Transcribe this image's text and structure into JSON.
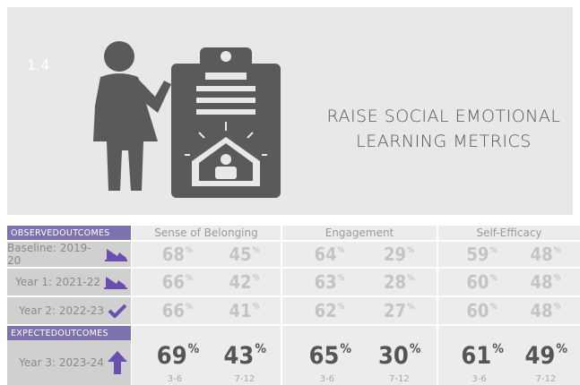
{
  "badge": "1.4",
  "title": "RAISE SOCIAL EMOTIONAL LEARNING METRICS",
  "table": {
    "observed_label": "OBSERVEDOUTCOMES",
    "expected_label": "EXPECTEDOUTCOMES",
    "columns": [
      "Sense of Belonging",
      "Engagement",
      "Self-Efficacy"
    ],
    "unit": "%",
    "grades": [
      "3-6",
      "7-12"
    ],
    "rows": [
      {
        "label": "Baseline: 2019-20",
        "values": [
          68,
          45,
          64,
          29,
          59,
          48
        ]
      },
      {
        "label": "Year 1: 2021-22",
        "values": [
          66,
          42,
          63,
          28,
          60,
          48
        ]
      },
      {
        "label": "Year 2: 2022-23",
        "values": [
          66,
          41,
          62,
          27,
          60,
          48
        ]
      },
      {
        "label": "Year 3: 2023-24",
        "values": [
          69,
          43,
          65,
          30,
          61,
          49
        ]
      }
    ]
  }
}
